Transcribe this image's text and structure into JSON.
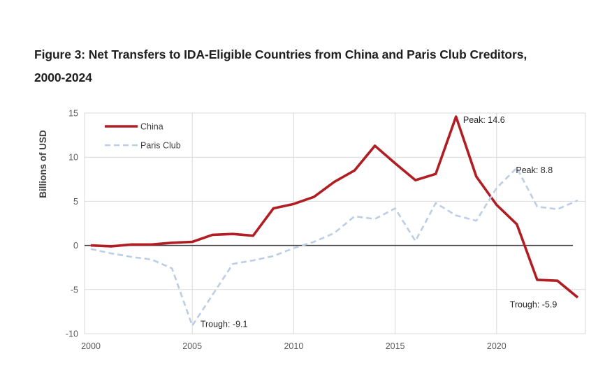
{
  "page": {
    "title_line1": "Figure 3: Net Transfers to IDA-Eligible Countries from China and Paris Club Creditors,",
    "title_line2": "2000-2024"
  },
  "chart_data": {
    "type": "line",
    "title": "Figure 3: Net Transfers to IDA-Eligible Countries from China and Paris Club Creditors, 2000-2024",
    "ylabel": "Billions of USD",
    "xlabel": "",
    "ylim": [
      -10,
      15
    ],
    "yticks": [
      15,
      10,
      5,
      0,
      -5,
      -10
    ],
    "xticks": [
      2000,
      2005,
      2010,
      2015,
      2020
    ],
    "grid": true,
    "legend_position": "top-left",
    "x": [
      2000,
      2001,
      2002,
      2003,
      2004,
      2005,
      2006,
      2007,
      2008,
      2009,
      2010,
      2011,
      2012,
      2013,
      2014,
      2015,
      2016,
      2017,
      2018,
      2019,
      2020,
      2021,
      2022,
      2023,
      2024
    ],
    "series": [
      {
        "name": "China",
        "color": "#B01E23",
        "style": "solid",
        "values": [
          0.0,
          -0.1,
          0.1,
          0.1,
          0.3,
          0.4,
          1.2,
          1.3,
          1.1,
          4.2,
          4.7,
          5.5,
          7.2,
          8.5,
          11.3,
          9.3,
          7.4,
          8.1,
          14.6,
          7.8,
          4.6,
          2.4,
          -3.9,
          -4.0,
          -5.9
        ]
      },
      {
        "name": "Paris Club",
        "color": "#BCCDE6",
        "style": "dashed",
        "values": [
          -0.4,
          -0.9,
          -1.3,
          -1.6,
          -2.6,
          -9.1,
          -5.6,
          -2.1,
          -1.7,
          -1.2,
          -0.3,
          0.4,
          1.4,
          3.3,
          3.0,
          4.2,
          0.5,
          4.8,
          3.4,
          2.8,
          6.5,
          8.8,
          4.4,
          4.1,
          5.1
        ]
      }
    ],
    "annotations": [
      {
        "id": "china-peak",
        "text": "Peak: 14.6",
        "year": 2018.35,
        "value": 13.9
      },
      {
        "id": "paris-peak",
        "text": "Peak: 8.8",
        "year": 2020.95,
        "value": 8.2
      },
      {
        "id": "paris-trough",
        "text": "Trough: -9.1",
        "year": 2005.4,
        "value": -9.25
      },
      {
        "id": "china-trough",
        "text": "Trough: -5.9",
        "year": 2020.65,
        "value": -7.05
      }
    ],
    "colors": {
      "gridline": "#D9D9D9",
      "zero_line": "#3F3F3F",
      "tick_label": "#595959",
      "legend_text": "#404040",
      "annotation_text": "#262626",
      "title_text": "#1F1F1F"
    }
  }
}
